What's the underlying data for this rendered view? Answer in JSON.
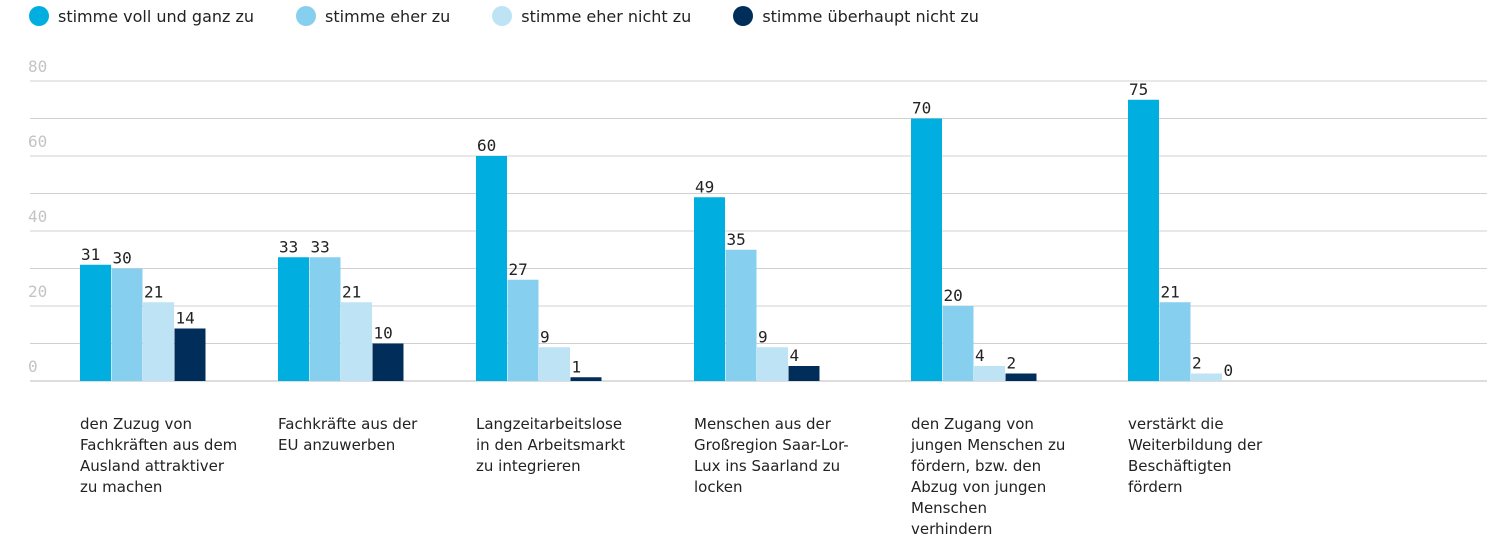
{
  "chart_data": {
    "type": "bar",
    "categories": [
      "den Zuzug von Fachkräften aus dem Ausland attraktiver zu machen",
      "Fachkräfte aus der EU anzuwerben",
      "Langzeitarbeitslose in den Arbeitsmarkt zu integrieren",
      "Menschen aus der Großregion Saar-Lor-Lux ins Saarland zu locken",
      "den Zugang von jungen Menschen zu fördern, bzw. den Abzug von jungen Menschen verhindern",
      "verstärkt die Weiterbildung der Beschäftigten fördern"
    ],
    "series": [
      {
        "name": "stimme voll und ganz zu",
        "color": "#00aee0",
        "values": [
          31,
          33,
          60,
          49,
          70,
          75
        ]
      },
      {
        "name": "stimme eher zu",
        "color": "#87cfee",
        "values": [
          30,
          33,
          27,
          35,
          20,
          21
        ]
      },
      {
        "name": "stimme eher nicht zu",
        "color": "#bde3f5",
        "values": [
          21,
          21,
          9,
          9,
          4,
          2
        ]
      },
      {
        "name": "stimme überhaupt nicht zu",
        "color": "#002d5a",
        "values": [
          14,
          10,
          1,
          4,
          2,
          0
        ]
      }
    ],
    "ylim": [
      0,
      80
    ],
    "yticks": [
      0,
      20,
      40,
      60,
      80
    ],
    "minor_grid": [
      10,
      30,
      50,
      70
    ],
    "grid": true,
    "legend": "top"
  }
}
